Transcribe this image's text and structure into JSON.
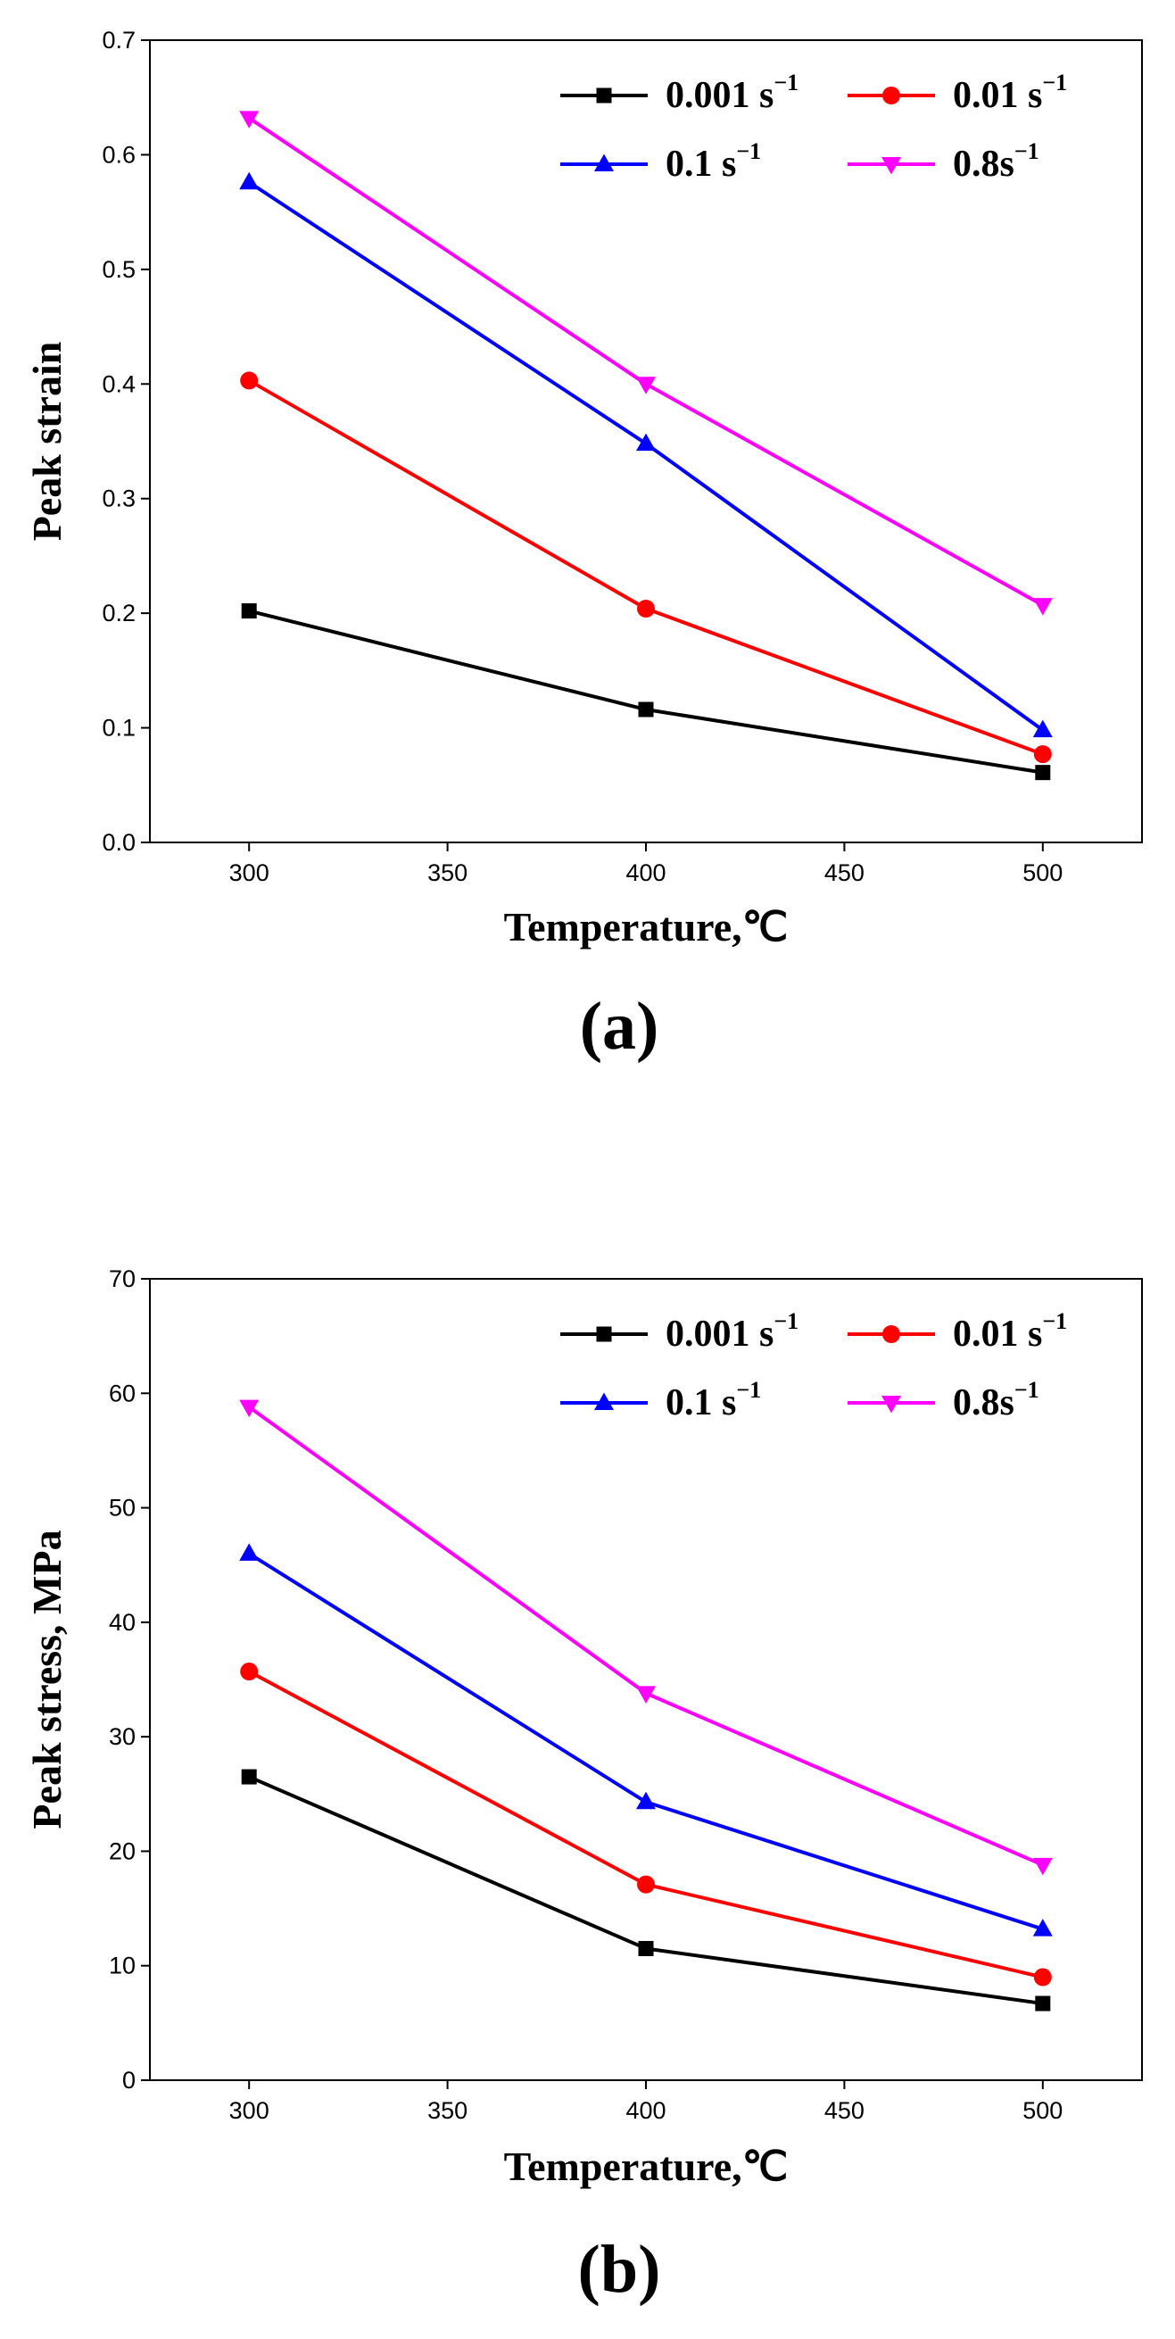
{
  "chart_data": [
    {
      "type": "line",
      "panel_label": "(a)",
      "xlabel": "Temperature,℃",
      "ylabel": "Peak strain",
      "xlim": [
        275,
        525
      ],
      "ylim": [
        0,
        0.7
      ],
      "xticks": [
        300,
        350,
        400,
        450,
        500
      ],
      "xtick_labels": [
        "300",
        "350",
        "400",
        "450",
        "500"
      ],
      "yticks": [
        0,
        0.1,
        0.2,
        0.3,
        0.4,
        0.5,
        0.6,
        0.7
      ],
      "ytick_labels": [
        "0.0",
        "0.1",
        "0.2",
        "0.3",
        "0.4",
        "0.5",
        "0.6",
        "0.7"
      ],
      "grid": false,
      "legend_position": "top-right",
      "x": [
        300,
        400,
        500
      ],
      "series": [
        {
          "name": "0.001 s",
          "sup": "−1",
          "color": "#000000",
          "marker": "square",
          "values": [
            0.202,
            0.116,
            0.061
          ]
        },
        {
          "name": "0.01 s",
          "sup": "−1",
          "color": "#ff0000",
          "marker": "circle",
          "values": [
            0.403,
            0.204,
            0.077
          ]
        },
        {
          "name": "0.1 s",
          "sup": "−1",
          "color": "#0000ff",
          "marker": "triangle-up",
          "values": [
            0.576,
            0.348,
            0.098
          ]
        },
        {
          "name": "0.8s",
          "sup": "−1",
          "color": "#ff00ff",
          "marker": "triangle-down",
          "values": [
            0.632,
            0.4,
            0.207
          ]
        }
      ]
    },
    {
      "type": "line",
      "panel_label": "(b)",
      "xlabel": "Temperature,℃",
      "ylabel": "Peak stress, MPa",
      "xlim": [
        275,
        525
      ],
      "ylim": [
        0,
        70
      ],
      "xticks": [
        300,
        350,
        400,
        450,
        500
      ],
      "xtick_labels": [
        "300",
        "350",
        "400",
        "450",
        "500"
      ],
      "yticks": [
        0,
        10,
        20,
        30,
        40,
        50,
        60,
        70
      ],
      "ytick_labels": [
        "0",
        "10",
        "20",
        "30",
        "40",
        "50",
        "60",
        "70"
      ],
      "grid": false,
      "legend_position": "top-right",
      "x": [
        300,
        400,
        500
      ],
      "series": [
        {
          "name": "0.001 s",
          "sup": "−1",
          "color": "#000000",
          "marker": "square",
          "values": [
            26.5,
            11.5,
            6.7
          ]
        },
        {
          "name": "0.01 s",
          "sup": "−1",
          "color": "#ff0000",
          "marker": "circle",
          "values": [
            35.7,
            17.1,
            9.0
          ]
        },
        {
          "name": "0.1 s",
          "sup": "−1",
          "color": "#0000ff",
          "marker": "triangle-up",
          "values": [
            46.0,
            24.3,
            13.2
          ]
        },
        {
          "name": "0.8s",
          "sup": "−1",
          "color": "#ff00ff",
          "marker": "triangle-down",
          "values": [
            58.8,
            33.8,
            18.8
          ]
        }
      ]
    }
  ]
}
